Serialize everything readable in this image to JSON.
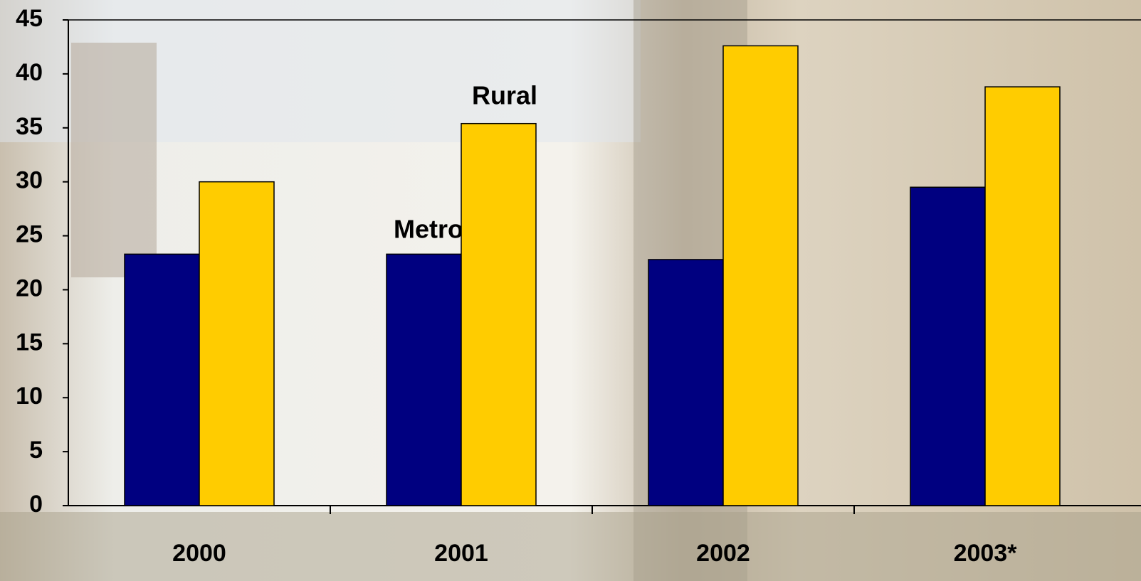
{
  "chart_data": {
    "type": "bar",
    "categories": [
      "2000",
      "2001",
      "2002",
      "2003*"
    ],
    "series": [
      {
        "name": "Metro",
        "color": "#000080",
        "values": [
          23.3,
          23.3,
          22.8,
          29.5
        ]
      },
      {
        "name": "Rural",
        "color": "#ffcc00",
        "values": [
          30,
          35.4,
          42.6,
          38.8
        ]
      }
    ],
    "ylim": [
      0,
      45
    ],
    "yticks": [
      0,
      5,
      10,
      15,
      20,
      25,
      30,
      35,
      40,
      45
    ]
  }
}
